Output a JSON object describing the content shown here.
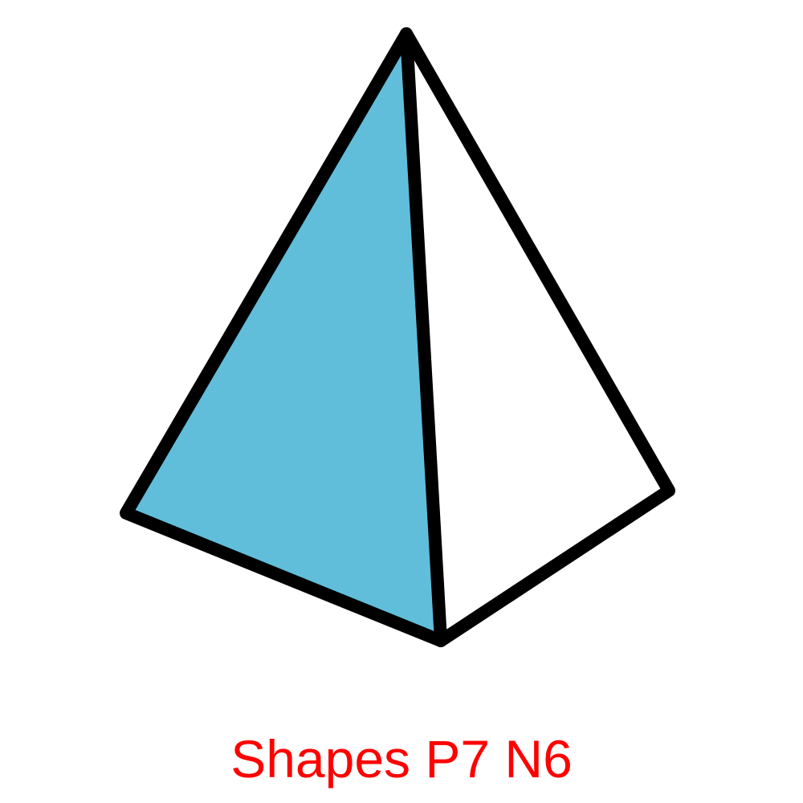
{
  "caption": {
    "text": "Shapes P7 N6",
    "color": "#ff0000"
  },
  "shape": {
    "kind": "triangular pyramid",
    "shaded_face_color": "#60bedb",
    "other_face_color": "#ffffff",
    "edge_color": "#000000"
  }
}
